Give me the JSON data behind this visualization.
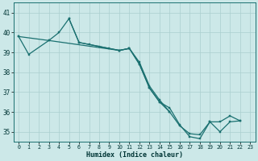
{
  "xlabel": "Humidex (Indice chaleur)",
  "background_color": "#cce8e8",
  "grid_color": "#aacfcf",
  "line_color": "#1a7070",
  "xlim": [
    -0.5,
    23.5
  ],
  "ylim": [
    34.5,
    41.5
  ],
  "yticks": [
    35,
    36,
    37,
    38,
    39,
    40,
    41
  ],
  "xticks": [
    0,
    1,
    2,
    3,
    4,
    5,
    6,
    7,
    8,
    9,
    10,
    11,
    12,
    13,
    14,
    15,
    16,
    17,
    18,
    19,
    20,
    21,
    22,
    23
  ],
  "lines": [
    {
      "x": [
        0,
        1,
        3,
        4,
        5,
        6,
        7,
        8,
        9,
        10,
        11,
        12,
        13,
        14,
        15
      ],
      "y": [
        39.8,
        38.9,
        39.6,
        40.0,
        40.7,
        39.5,
        39.4,
        39.3,
        39.2,
        39.1,
        39.2,
        38.5,
        37.3,
        36.6,
        36.0
      ]
    },
    {
      "x": [
        0,
        3,
        10,
        11,
        12,
        13,
        14,
        15,
        16,
        17,
        18,
        19,
        20,
        21,
        22
      ],
      "y": [
        39.8,
        39.6,
        39.1,
        39.2,
        38.4,
        37.2,
        36.5,
        36.0,
        35.3,
        34.9,
        34.85,
        35.5,
        35.5,
        35.8,
        35.55
      ]
    },
    {
      "x": [
        5,
        6,
        10,
        11,
        12,
        13,
        14,
        15,
        16,
        17,
        18,
        19,
        20,
        21,
        22
      ],
      "y": [
        40.7,
        39.5,
        39.1,
        39.2,
        38.4,
        37.2,
        36.5,
        36.2,
        35.35,
        34.75,
        34.65,
        35.5,
        35.0,
        35.5,
        35.55
      ]
    }
  ]
}
